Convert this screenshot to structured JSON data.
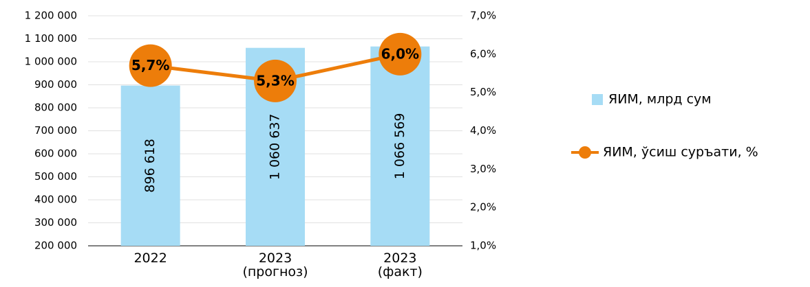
{
  "chart_data": {
    "type": "bar",
    "categories": [
      "2022",
      "2023\n(прогноз)",
      "2023\n(факт)"
    ],
    "series": [
      {
        "name": "ЯИМ, млрд сум",
        "type": "bar",
        "color": "#a6dcf5",
        "values": [
          896618,
          1060637,
          1066569
        ],
        "value_labels": [
          "896 618",
          "1 060 637",
          "1 066 569"
        ]
      },
      {
        "name": "ЯИМ, ўсиш суръати, %",
        "type": "line",
        "axis": "y2",
        "color": "#ed7d0a",
        "values": [
          5.7,
          5.3,
          6.0
        ],
        "value_labels": [
          "5,7%",
          "5,3%",
          "6,0%"
        ]
      }
    ],
    "ylim": [
      200000,
      1200000
    ],
    "yticks": [
      {
        "value": 200000,
        "label": "200 000"
      },
      {
        "value": 300000,
        "label": "300 000"
      },
      {
        "value": 400000,
        "label": "400 000"
      },
      {
        "value": 500000,
        "label": "500 000"
      },
      {
        "value": 600000,
        "label": "600 000"
      },
      {
        "value": 700000,
        "label": "700 000"
      },
      {
        "value": 800000,
        "label": "800 000"
      },
      {
        "value": 900000,
        "label": "900 000"
      },
      {
        "value": 1000000,
        "label": "1 000 000"
      },
      {
        "value": 1100000,
        "label": "1 100 000"
      },
      {
        "value": 1200000,
        "label": "1 200 000"
      }
    ],
    "y2lim": [
      1,
      7
    ],
    "y2ticks": [
      {
        "value": 1,
        "label": "1,0%"
      },
      {
        "value": 2,
        "label": "2,0%"
      },
      {
        "value": 3,
        "label": "3,0%"
      },
      {
        "value": 4,
        "label": "4,0%"
      },
      {
        "value": 5,
        "label": "5,0%"
      },
      {
        "value": 6,
        "label": "6,0%"
      },
      {
        "value": 7,
        "label": "7,0%"
      }
    ],
    "grid": true,
    "legend": "right"
  }
}
